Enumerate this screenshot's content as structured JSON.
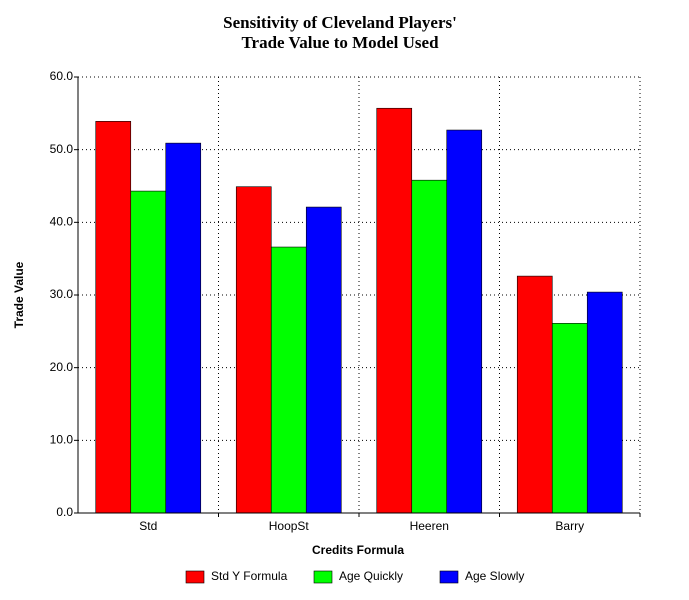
{
  "chart_data": {
    "type": "bar",
    "title": [
      "Sensitivity of Cleveland Players'",
      "Trade Value to Model Used"
    ],
    "x_label": "Credits Formula",
    "y_label": "Trade Value",
    "categories": [
      "Std",
      "HoopSt",
      "Heeren",
      "Barry"
    ],
    "series": [
      {
        "name": "Std Y Formula",
        "color": "#ff0000",
        "values": [
          53.9,
          44.9,
          55.7,
          32.6
        ]
      },
      {
        "name": "Age Quickly",
        "color": "#00ff00",
        "values": [
          44.3,
          36.6,
          45.8,
          26.1
        ]
      },
      {
        "name": "Age Slowly",
        "color": "#0000ff",
        "values": [
          50.9,
          42.1,
          52.7,
          30.4
        ]
      }
    ],
    "ylim": [
      0,
      60
    ],
    "yticks": [
      {
        "value": 0,
        "label": "0.0"
      },
      {
        "value": 10,
        "label": "10.0"
      },
      {
        "value": 20,
        "label": "20.0"
      },
      {
        "value": 30,
        "label": "30.0"
      },
      {
        "value": 40,
        "label": "40.0"
      },
      {
        "value": 50,
        "label": "50.0"
      },
      {
        "value": 60,
        "label": "60.0"
      }
    ],
    "grid": true,
    "legend": "bottom"
  }
}
